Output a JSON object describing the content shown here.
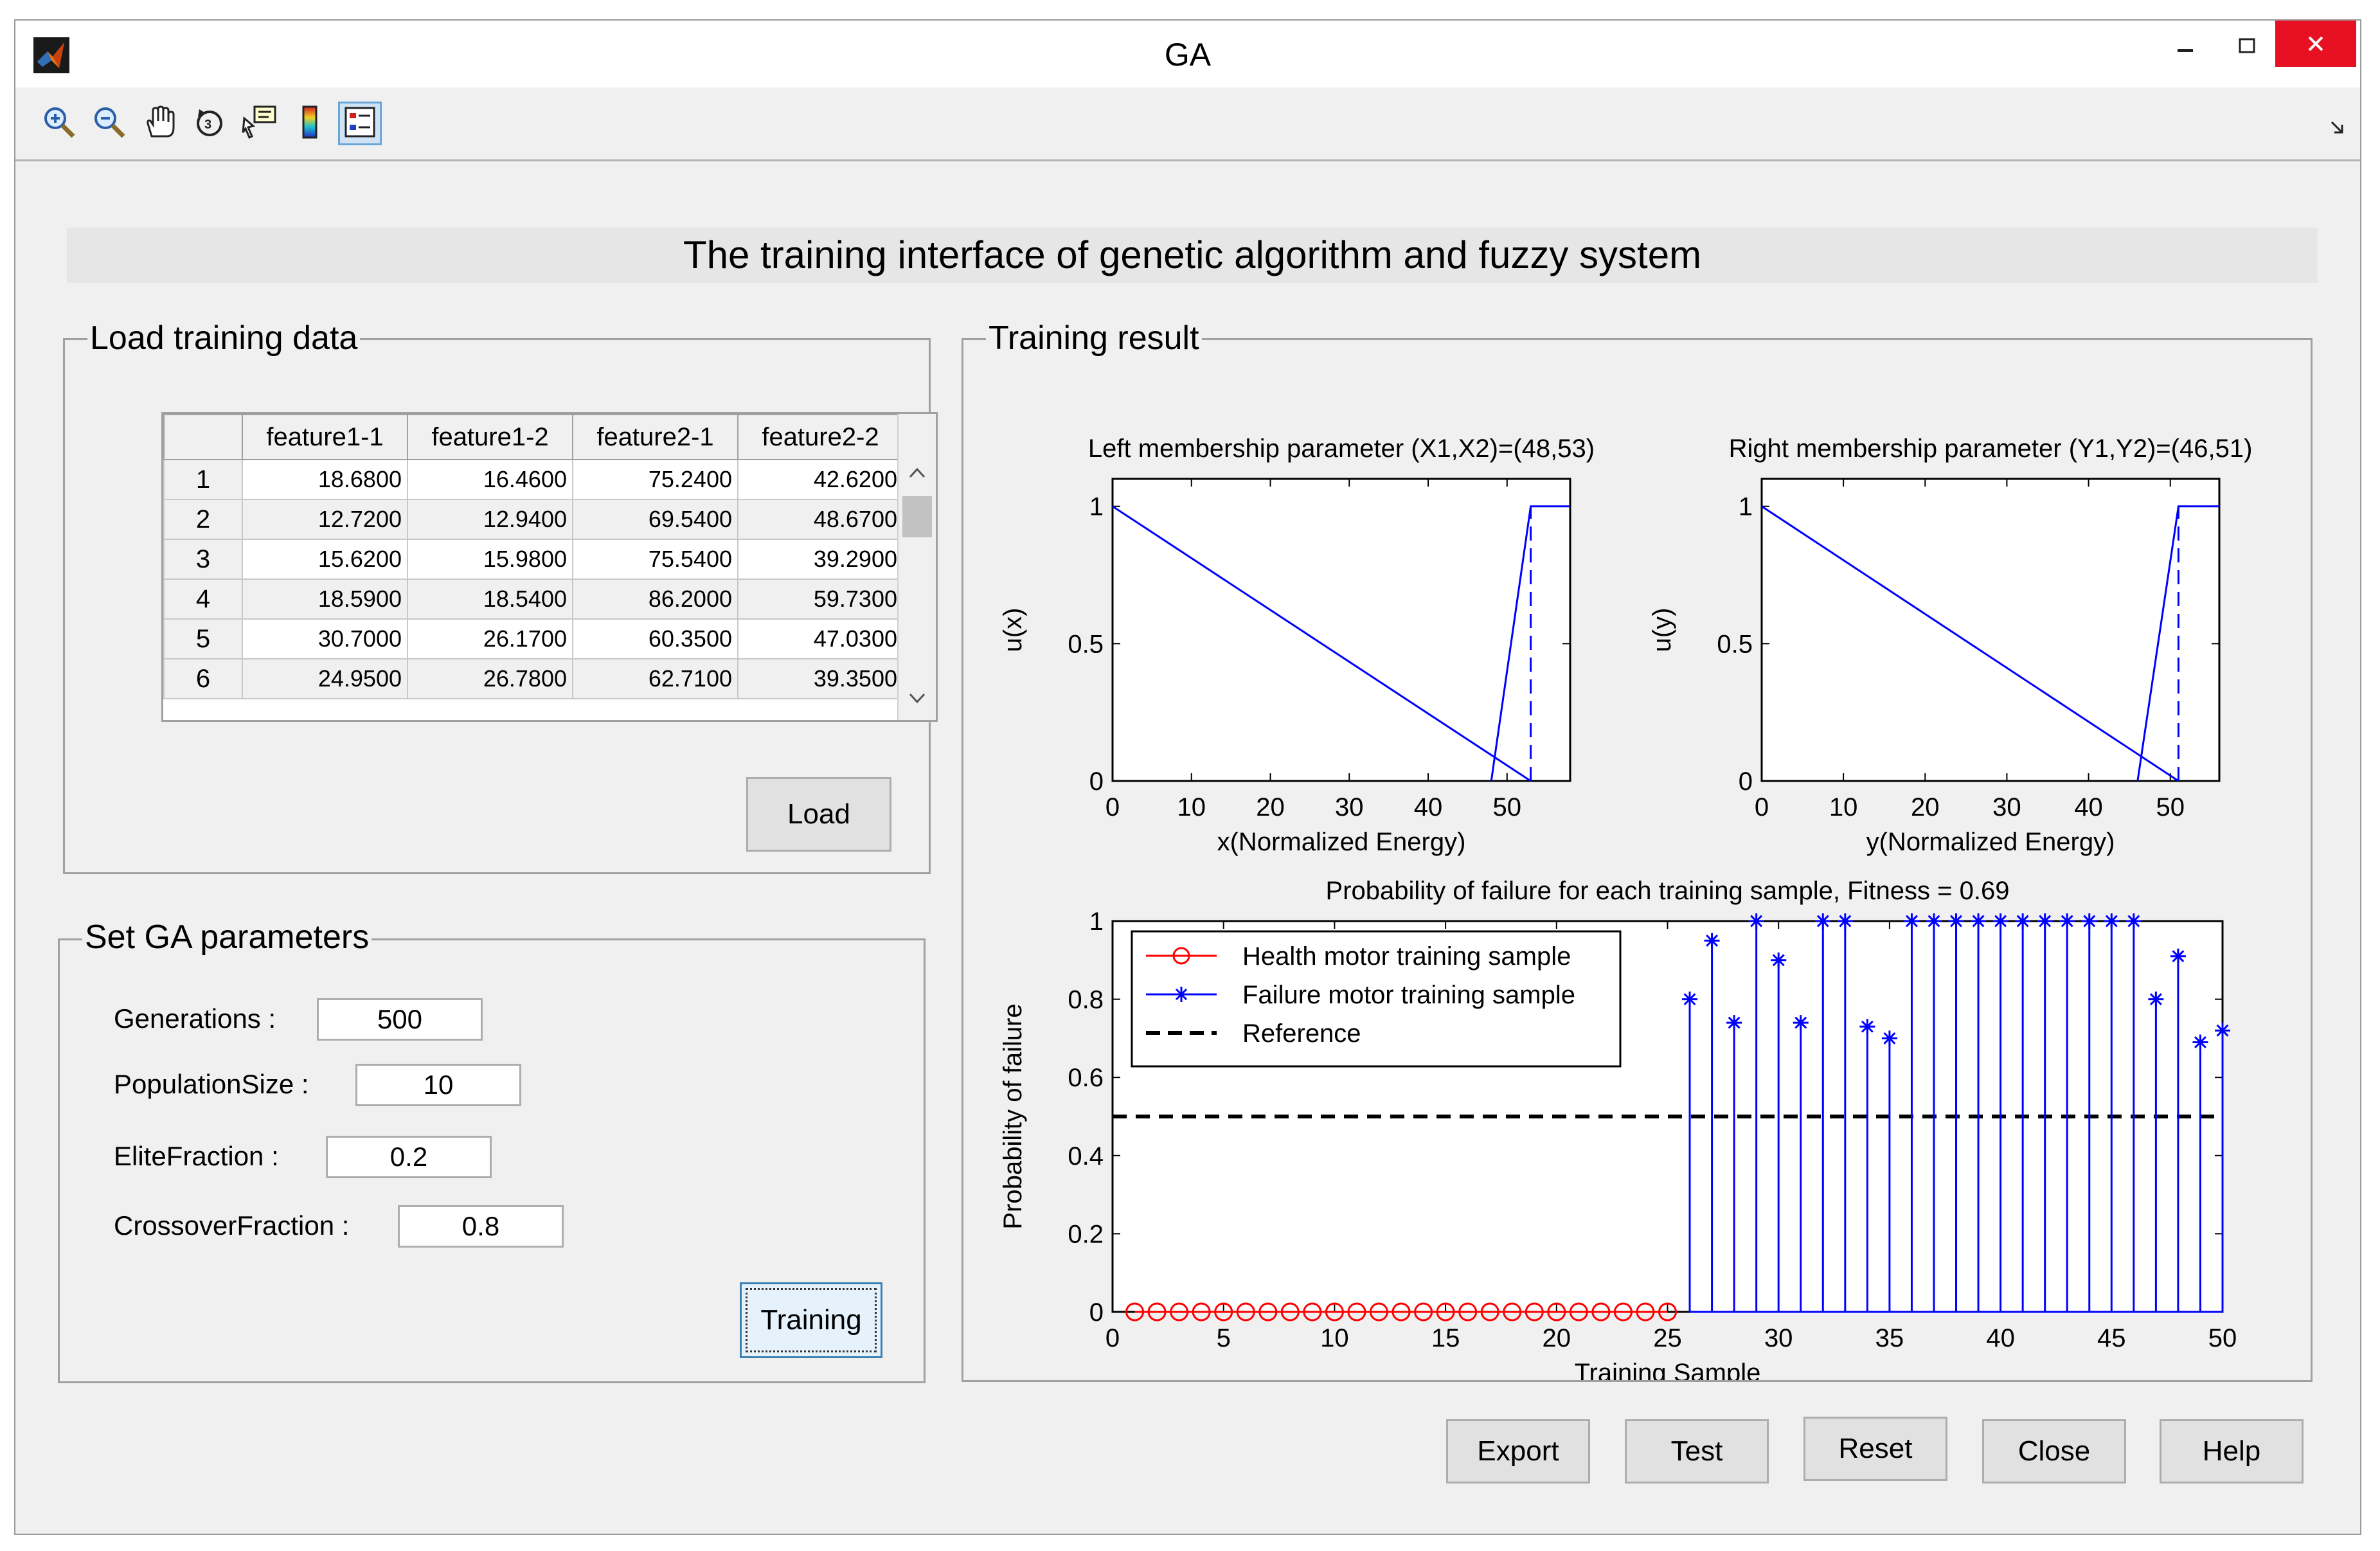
{
  "window": {
    "title": "GA"
  },
  "heading": "The training interface of genetic algorithm and fuzzy system",
  "load_panel": {
    "title": "Load training data",
    "columns": [
      "feature1-1",
      "feature1-2",
      "feature2-1",
      "feature2-2"
    ],
    "rows": [
      {
        "id": "1",
        "values": [
          "18.6800",
          "16.4600",
          "75.2400",
          "42.6200"
        ]
      },
      {
        "id": "2",
        "values": [
          "12.7200",
          "12.9400",
          "69.5400",
          "48.6700"
        ]
      },
      {
        "id": "3",
        "values": [
          "15.6200",
          "15.9800",
          "75.5400",
          "39.2900"
        ]
      },
      {
        "id": "4",
        "values": [
          "18.5900",
          "18.5400",
          "86.2000",
          "59.7300"
        ]
      },
      {
        "id": "5",
        "values": [
          "30.7000",
          "26.1700",
          "60.3500",
          "47.0300"
        ]
      },
      {
        "id": "6",
        "values": [
          "24.9500",
          "26.7800",
          "62.7100",
          "39.3500"
        ]
      }
    ],
    "load_button": "Load"
  },
  "ga_panel": {
    "title": "Set GA parameters",
    "generations_label": "Generations :",
    "generations_value": "500",
    "population_label": "PopulationSize :",
    "population_value": "10",
    "elite_label": "EliteFraction :",
    "elite_value": "0.2",
    "crossover_label": "CrossoverFraction :",
    "crossover_value": "0.8",
    "training_button": "Training"
  },
  "result_panel": {
    "title": "Training result"
  },
  "buttons": {
    "export": "Export",
    "test": "Test",
    "reset": "Reset",
    "close": "Close",
    "help": "Help"
  },
  "icons": [
    "zoom-in-icon",
    "zoom-out-icon",
    "pan-icon",
    "rotate-icon",
    "data-cursor-icon",
    "colorbar-icon",
    "legend-icon"
  ],
  "colors": {
    "series_blue": "#0000ff",
    "series_red": "#ff0000",
    "close_red": "#e81123"
  },
  "chart_data": [
    {
      "type": "line",
      "title": "Left membership parameter (X1,X2)=(48,53)",
      "xlabel": "x(Normalized Energy)",
      "ylabel": "u(x)",
      "xlim": [
        0,
        58
      ],
      "ylim": [
        0,
        1.1
      ],
      "xticks": [
        "0",
        "10",
        "20",
        "30",
        "40",
        "50"
      ],
      "yticks": [
        "0",
        "0.5",
        "1"
      ],
      "series": [
        {
          "style": "solid",
          "x": [
            0,
            53
          ],
          "y": [
            1,
            0
          ]
        },
        {
          "style": "solid",
          "x": [
            48,
            53,
            58
          ],
          "y": [
            0,
            1,
            1
          ]
        },
        {
          "style": "dashed",
          "x": [
            53,
            53
          ],
          "y": [
            0,
            1
          ]
        }
      ]
    },
    {
      "type": "line",
      "title": "Right membership parameter (Y1,Y2)=(46,51)",
      "xlabel": "y(Normalized Energy)",
      "ylabel": "u(y)",
      "xlim": [
        0,
        56
      ],
      "ylim": [
        0,
        1.1
      ],
      "xticks": [
        "0",
        "10",
        "20",
        "30",
        "40",
        "50"
      ],
      "yticks": [
        "0",
        "0.5",
        "1"
      ],
      "series": [
        {
          "style": "solid",
          "x": [
            0,
            51
          ],
          "y": [
            1,
            0
          ]
        },
        {
          "style": "solid",
          "x": [
            46,
            51,
            56
          ],
          "y": [
            0,
            1,
            1
          ]
        },
        {
          "style": "dashed",
          "x": [
            51,
            51
          ],
          "y": [
            0,
            1
          ]
        }
      ]
    },
    {
      "type": "scatter",
      "title": "Probability of failure for each training sample, Fitness = 0.69",
      "xlabel": "Training Sample",
      "ylabel": "Probability of failure",
      "xlim": [
        0,
        50
      ],
      "ylim": [
        0,
        1
      ],
      "xticks": [
        "0",
        "5",
        "10",
        "15",
        "20",
        "25",
        "30",
        "35",
        "40",
        "45",
        "50"
      ],
      "yticks": [
        "0",
        "0.2",
        "0.4",
        "0.6",
        "0.8",
        "1"
      ],
      "legend_position": "top-left",
      "legend": [
        "Health motor training sample",
        "Failure motor training sample",
        "Reference"
      ],
      "series": [
        {
          "name": "Health motor training sample",
          "marker": "circle",
          "x": [
            1,
            2,
            3,
            4,
            5,
            6,
            7,
            8,
            9,
            10,
            11,
            12,
            13,
            14,
            15,
            16,
            17,
            18,
            19,
            20,
            21,
            22,
            23,
            24,
            25
          ],
          "y": [
            0,
            0,
            0,
            0,
            0,
            0,
            0,
            0,
            0,
            0,
            0,
            0,
            0,
            0,
            0,
            0,
            0,
            0,
            0,
            0,
            0,
            0,
            0,
            0,
            0
          ]
        },
        {
          "name": "Failure motor training sample",
          "marker": "star",
          "x": [
            26,
            27,
            28,
            29,
            30,
            31,
            32,
            33,
            34,
            35,
            36,
            37,
            38,
            39,
            40,
            41,
            42,
            43,
            44,
            45,
            46,
            47,
            48,
            49,
            50
          ],
          "y": [
            0.8,
            0.95,
            0.74,
            1,
            0.9,
            0.74,
            1,
            1,
            0.73,
            0.7,
            1,
            1,
            1,
            1,
            1,
            1,
            1,
            1,
            1,
            1,
            1,
            0.8,
            0.91,
            0.69,
            0.72
          ]
        },
        {
          "name": "Reference",
          "style": "dashed",
          "x": [
            0,
            50
          ],
          "y": [
            0.5,
            0.5
          ]
        }
      ]
    }
  ]
}
